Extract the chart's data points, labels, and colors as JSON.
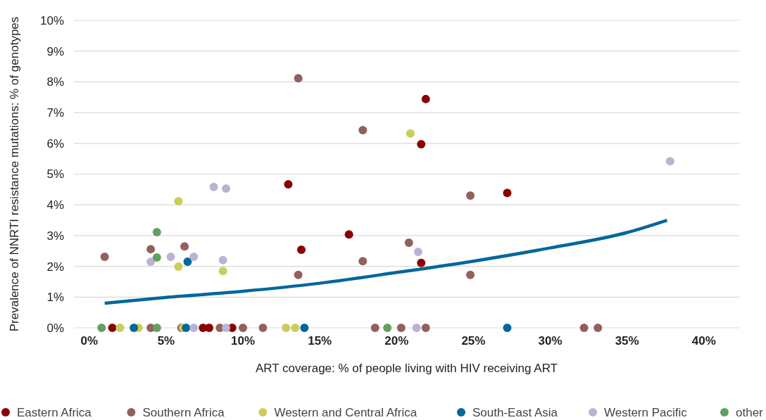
{
  "chart_data": {
    "type": "scatter",
    "xlabel": "ART coverage: % of people living with HIV receiving ART",
    "ylabel": "Prevalence of NNRTI resistance mutations: % of genotypes",
    "xlim": [
      -1,
      42.3
    ],
    "ylim": [
      0,
      10
    ],
    "xticks": [
      {
        "value": 0,
        "label": "0%"
      },
      {
        "value": 5,
        "label": "5%"
      },
      {
        "value": 10,
        "label": "10%"
      },
      {
        "value": 15,
        "label": "15%"
      },
      {
        "value": 20,
        "label": "20%"
      },
      {
        "value": 25,
        "label": "25%"
      },
      {
        "value": 30,
        "label": "30%"
      },
      {
        "value": 35,
        "label": "35%"
      },
      {
        "value": 40,
        "label": "40%"
      }
    ],
    "yticks": [
      {
        "value": 0,
        "label": "0%"
      },
      {
        "value": 1,
        "label": "1%"
      },
      {
        "value": 2,
        "label": "2%"
      },
      {
        "value": 3,
        "label": "3%"
      },
      {
        "value": 4,
        "label": "4%"
      },
      {
        "value": 5,
        "label": "5%"
      },
      {
        "value": 6,
        "label": "6%"
      },
      {
        "value": 7,
        "label": "7%"
      },
      {
        "value": 8,
        "label": "8%"
      },
      {
        "value": 9,
        "label": "9%"
      },
      {
        "value": 10,
        "label": "10%"
      }
    ],
    "grid": "y",
    "legend": "bottom",
    "marker": "circle",
    "series": [
      {
        "name": "Eastern Africa",
        "color": "#8b0000",
        "x": [
          21.9,
          21.6,
          12.95,
          27.2,
          16.9,
          13.8,
          21.6,
          1.5,
          7.4,
          7.8,
          9.3
        ],
        "values": [
          7.44,
          5.97,
          4.67,
          4.39,
          3.04,
          2.54,
          2.11,
          0,
          0,
          0,
          0
        ]
      },
      {
        "name": "Southern Africa",
        "color": "#92615b",
        "x": [
          13.6,
          17.8,
          24.8,
          20.8,
          6.2,
          4.0,
          1.0,
          17.8,
          13.6,
          24.8,
          4.0,
          6.0,
          8.5,
          10.0,
          11.3,
          18.6,
          20.3,
          21.9,
          32.2,
          33.1
        ],
        "values": [
          8.12,
          6.43,
          4.3,
          2.77,
          2.65,
          2.56,
          2.31,
          2.17,
          1.72,
          1.72,
          0,
          0,
          0,
          0,
          0,
          0,
          0,
          0,
          0,
          0
        ]
      },
      {
        "name": "Western and Central Africa",
        "color": "#cccc5c",
        "x": [
          20.9,
          5.8,
          5.8,
          8.7,
          2.0,
          3.2,
          6.1,
          12.8,
          13.4
        ],
        "values": [
          6.32,
          4.12,
          1.99,
          1.85,
          0,
          0,
          0,
          0,
          0
        ]
      },
      {
        "name": "South-East Asia",
        "color": "#00679a",
        "x": [
          6.4,
          2.9,
          6.3,
          14.0,
          27.2
        ],
        "values": [
          2.15,
          0,
          0,
          0,
          0
        ]
      },
      {
        "name": "Western Pacific",
        "color": "#b9b4d6",
        "x": [
          8.1,
          8.9,
          37.8,
          5.3,
          4.0,
          6.8,
          8.7,
          21.4,
          6.8,
          8.9,
          21.3
        ],
        "values": [
          4.58,
          4.53,
          5.42,
          2.31,
          2.15,
          2.31,
          2.2,
          2.47,
          0,
          0,
          0
        ]
      },
      {
        "name": "other",
        "color": "#62a05f",
        "x": [
          4.4,
          4.4,
          0.8,
          4.4,
          19.4
        ],
        "values": [
          3.11,
          2.29,
          0,
          0,
          0
        ]
      },
      {
        "type": "line",
        "color": "#00679a",
        "marker": "none",
        "x": [
          1.0,
          5,
          10,
          15,
          20,
          25,
          30,
          35,
          37.6
        ],
        "values": [
          0.8,
          0.99,
          1.19,
          1.45,
          1.8,
          2.17,
          2.6,
          3.1,
          3.5
        ]
      }
    ]
  }
}
